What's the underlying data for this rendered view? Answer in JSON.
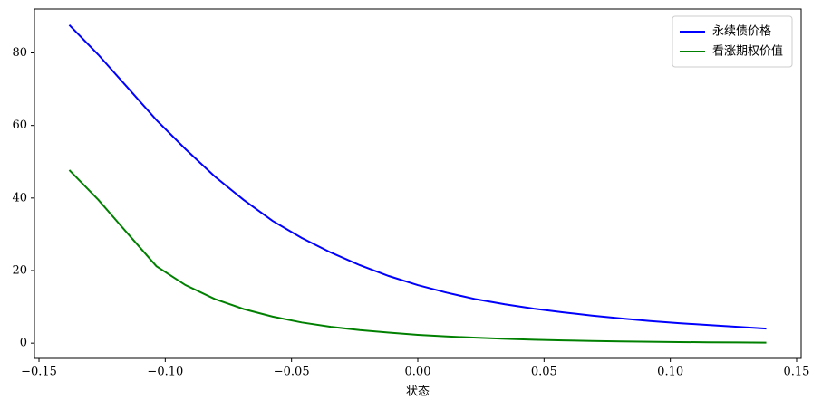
{
  "chart_data": {
    "type": "line",
    "x_label": "状态",
    "x": [
      -0.138,
      -0.1265,
      -0.115,
      -0.1035,
      -0.092,
      -0.0805,
      -0.069,
      -0.0575,
      -0.046,
      -0.0345,
      -0.023,
      -0.0115,
      0,
      0.0115,
      0.023,
      0.0345,
      0.046,
      0.0575,
      0.069,
      0.0805,
      0.092,
      0.1035,
      0.115,
      0.1265,
      0.138
    ],
    "series": [
      {
        "name": "永续债价格",
        "color": "#0000ff",
        "values": [
          87.7,
          79.5,
          70.5,
          61.5,
          53.5,
          46,
          39.5,
          33.7,
          29,
          25,
          21.5,
          18.5,
          16,
          13.9,
          12.1,
          10.7,
          9.5,
          8.5,
          7.6,
          6.8,
          6.1,
          5.5,
          5.0,
          4.5,
          4.0
        ]
      },
      {
        "name": "看涨期权价值",
        "color": "#008000",
        "values": [
          47.7,
          39.5,
          30.3,
          21.2,
          16,
          12.2,
          9.4,
          7.3,
          5.7,
          4.5,
          3.6,
          2.9,
          2.3,
          1.85,
          1.5,
          1.2,
          0.95,
          0.75,
          0.6,
          0.48,
          0.38,
          0.3,
          0.24,
          0.19,
          0.15
        ]
      }
    ],
    "xlim": [
      -0.1518,
      0.1518
    ],
    "ylim": [
      -4.2,
      92.1
    ],
    "xticks": [
      {
        "value": -0.15,
        "label": "−0.15"
      },
      {
        "value": -0.1,
        "label": "−0.10"
      },
      {
        "value": -0.05,
        "label": "−0.05"
      },
      {
        "value": 0,
        "label": "0.00"
      },
      {
        "value": 0.05,
        "label": "0.05"
      },
      {
        "value": 0.1,
        "label": "0.10"
      },
      {
        "value": 0.15,
        "label": "0.15"
      }
    ],
    "yticks": [
      0,
      20,
      40,
      60,
      80
    ],
    "legend": "upper right"
  }
}
